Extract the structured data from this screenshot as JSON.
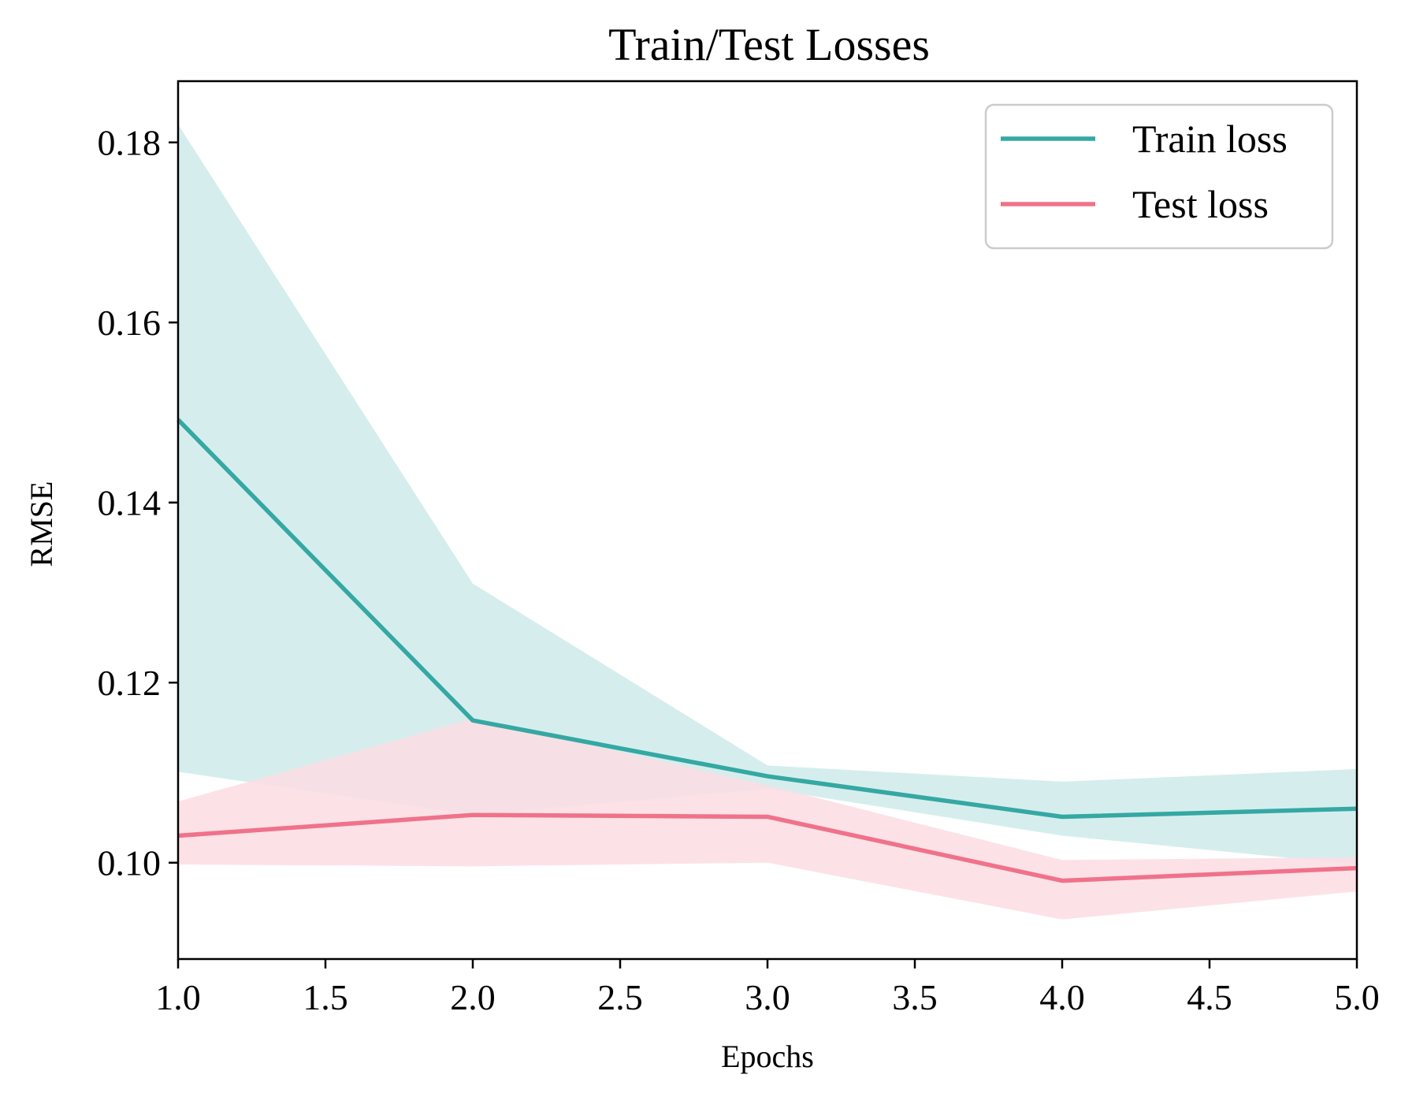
{
  "chart_data": {
    "type": "line",
    "title": "Train/Test Losses",
    "xlabel": "Epochs",
    "ylabel": "RMSE",
    "xlim": [
      1.0,
      5.0
    ],
    "ylim": [
      0.0893,
      0.1868
    ],
    "xticks": [
      "1.0",
      "1.5",
      "2.0",
      "2.5",
      "3.0",
      "3.5",
      "4.0",
      "4.5",
      "5.0"
    ],
    "yticks": [
      "0.10",
      "0.12",
      "0.14",
      "0.16",
      "0.18"
    ],
    "grid": false,
    "legend_position": "top-right",
    "x": [
      1,
      2,
      3,
      4,
      5
    ],
    "series": [
      {
        "name": "Train loss",
        "color": "#35a8a3",
        "band_color": "#d5eeed",
        "values": [
          0.1492,
          0.1158,
          0.1096,
          0.1051,
          0.106
        ],
        "lower": [
          0.1101,
          0.1053,
          0.1082,
          0.103,
          0.0998
        ],
        "upper": [
          0.182,
          0.131,
          0.1108,
          0.109,
          0.1104
        ]
      },
      {
        "name": "Test loss",
        "color": "#f0728a",
        "band_color": "#fcdde3",
        "values": [
          0.103,
          0.1053,
          0.1051,
          0.098,
          0.0994
        ],
        "lower": [
          0.0998,
          0.0996,
          0.1,
          0.0937,
          0.0968
        ],
        "upper": [
          0.1068,
          0.116,
          0.1086,
          0.1003,
          0.1006
        ]
      }
    ]
  }
}
